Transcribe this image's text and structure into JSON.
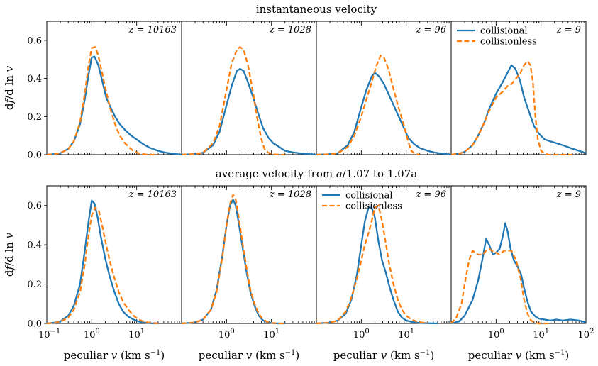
{
  "figure": {
    "row_titles": [
      "instantaneous velocity",
      "average velocity from a/1.07 to 1.07a"
    ],
    "ylabel": "d f / d ln v",
    "xlabel": "peculiar v (km s^-1)",
    "legend_labels": [
      "collisional",
      "collisionless"
    ]
  },
  "chart_data": [
    {
      "type": "line",
      "row": 0,
      "col": 0,
      "title": "z = 10163",
      "xscale": "log",
      "xlim": [
        0.1,
        100
      ],
      "ylim": [
        0,
        0.7
      ],
      "yticks": [
        0.0,
        0.2,
        0.4,
        0.6
      ],
      "ytick_labels": [
        "0.0",
        "0.2",
        "0.4",
        "0.6"
      ],
      "xtick_labels": [],
      "legend": false,
      "series": [
        {
          "name": "collisional",
          "color": "#1f77b4",
          "style": "solid",
          "x": [
            0.1,
            0.15,
            0.2,
            0.3,
            0.4,
            0.55,
            0.7,
            0.85,
            1.0,
            1.15,
            1.4,
            1.7,
            2.1,
            2.6,
            3.3,
            4.2,
            5.5,
            7.5,
            10,
            14,
            20,
            30,
            45,
            70,
            100
          ],
          "y": [
            0.0,
            0.003,
            0.008,
            0.03,
            0.07,
            0.16,
            0.29,
            0.42,
            0.51,
            0.515,
            0.47,
            0.39,
            0.3,
            0.25,
            0.2,
            0.16,
            0.13,
            0.1,
            0.08,
            0.055,
            0.035,
            0.02,
            0.01,
            0.004,
            0.0
          ]
        },
        {
          "name": "collisionless",
          "color": "#ff7f0e",
          "style": "dashed",
          "x": [
            0.1,
            0.15,
            0.2,
            0.3,
            0.4,
            0.55,
            0.7,
            0.85,
            1.0,
            1.2,
            1.4,
            1.7,
            2.1,
            2.6,
            3.3,
            4.2,
            5.5,
            7,
            9,
            12,
            16,
            22,
            30
          ],
          "y": [
            0.0,
            0.003,
            0.008,
            0.03,
            0.07,
            0.17,
            0.32,
            0.47,
            0.56,
            0.565,
            0.52,
            0.43,
            0.33,
            0.24,
            0.16,
            0.1,
            0.06,
            0.035,
            0.015,
            0.005,
            0.001,
            0.0,
            0.0
          ]
        }
      ]
    },
    {
      "type": "line",
      "row": 0,
      "col": 1,
      "title": "z = 1028",
      "xscale": "log",
      "xlim": [
        0.1,
        100
      ],
      "ylim": [
        0,
        0.7
      ],
      "yticks": [],
      "ytick_labels": [],
      "xtick_labels": [],
      "legend": false,
      "series": [
        {
          "name": "collisional",
          "color": "#1f77b4",
          "style": "solid",
          "x": [
            0.1,
            0.2,
            0.3,
            0.5,
            0.7,
            1.0,
            1.3,
            1.7,
            2.0,
            2.4,
            3.0,
            3.8,
            5.0,
            6.5,
            8.5,
            11,
            15,
            20,
            30,
            50,
            100
          ],
          "y": [
            0.0,
            0.003,
            0.01,
            0.05,
            0.12,
            0.26,
            0.36,
            0.44,
            0.45,
            0.44,
            0.38,
            0.31,
            0.22,
            0.14,
            0.09,
            0.06,
            0.04,
            0.02,
            0.012,
            0.005,
            0.0
          ]
        },
        {
          "name": "collisionless",
          "color": "#ff7f0e",
          "style": "dashed",
          "x": [
            0.1,
            0.2,
            0.3,
            0.5,
            0.7,
            1.0,
            1.3,
            1.7,
            2.0,
            2.4,
            3.0,
            3.8,
            5.0,
            6.0,
            7.0,
            8.5,
            11,
            15,
            20
          ],
          "y": [
            0.0,
            0.003,
            0.01,
            0.06,
            0.15,
            0.34,
            0.48,
            0.55,
            0.565,
            0.55,
            0.47,
            0.34,
            0.17,
            0.08,
            0.03,
            0.01,
            0.002,
            0.0,
            0.0
          ]
        }
      ]
    },
    {
      "type": "line",
      "row": 0,
      "col": 2,
      "title": "z = 96",
      "xscale": "log",
      "xlim": [
        0.1,
        100
      ],
      "ylim": [
        0,
        0.7
      ],
      "yticks": [],
      "ytick_labels": [],
      "xtick_labels": [],
      "legend": false,
      "series": [
        {
          "name": "collisional",
          "color": "#1f77b4",
          "style": "solid",
          "x": [
            0.1,
            0.2,
            0.3,
            0.5,
            0.7,
            1.0,
            1.3,
            1.7,
            2.0,
            2.5,
            3.2,
            4.0,
            5.0,
            6.5,
            8.5,
            11,
            15,
            20,
            30,
            45,
            70,
            100
          ],
          "y": [
            0.0,
            0.002,
            0.008,
            0.05,
            0.12,
            0.25,
            0.34,
            0.41,
            0.43,
            0.41,
            0.37,
            0.32,
            0.27,
            0.21,
            0.15,
            0.09,
            0.055,
            0.035,
            0.02,
            0.01,
            0.004,
            0.0
          ]
        },
        {
          "name": "collisionless",
          "color": "#ff7f0e",
          "style": "dashed",
          "x": [
            0.1,
            0.2,
            0.3,
            0.5,
            0.7,
            1.0,
            1.3,
            1.7,
            2.2,
            2.7,
            3.2,
            4.0,
            5.0,
            6.5,
            8.5,
            11,
            13,
            16,
            20
          ],
          "y": [
            0.0,
            0.002,
            0.008,
            0.04,
            0.1,
            0.2,
            0.29,
            0.38,
            0.47,
            0.52,
            0.51,
            0.45,
            0.36,
            0.26,
            0.17,
            0.07,
            0.02,
            0.003,
            0.0
          ]
        }
      ]
    },
    {
      "type": "line",
      "row": 0,
      "col": 3,
      "title": "z = 9",
      "xscale": "log",
      "xlim": [
        0.1,
        100
      ],
      "ylim": [
        0,
        0.7
      ],
      "yticks": [],
      "ytick_labels": [],
      "xtick_labels": [],
      "legend": true,
      "series": [
        {
          "name": "collisional",
          "color": "#1f77b4",
          "style": "solid",
          "x": [
            0.1,
            0.15,
            0.2,
            0.3,
            0.4,
            0.55,
            0.7,
            1.0,
            1.4,
            1.8,
            2.2,
            2.7,
            3.4,
            4.2,
            5.5,
            7,
            9,
            12,
            16,
            22,
            30,
            45,
            70,
            100
          ],
          "y": [
            0.0,
            0.005,
            0.015,
            0.05,
            0.1,
            0.17,
            0.24,
            0.32,
            0.38,
            0.43,
            0.47,
            0.45,
            0.39,
            0.3,
            0.22,
            0.15,
            0.11,
            0.08,
            0.07,
            0.06,
            0.05,
            0.035,
            0.02,
            0.008
          ]
        },
        {
          "name": "collisionless",
          "color": "#ff7f0e",
          "style": "dashed",
          "x": [
            0.1,
            0.15,
            0.2,
            0.3,
            0.4,
            0.55,
            0.7,
            1.0,
            1.4,
            1.8,
            2.2,
            2.8,
            3.5,
            4.2,
            5.0,
            5.8,
            6.6,
            7.5,
            8.5,
            10,
            12,
            15,
            20,
            30,
            50
          ],
          "y": [
            0.0,
            0.005,
            0.015,
            0.05,
            0.1,
            0.17,
            0.23,
            0.3,
            0.33,
            0.36,
            0.37,
            0.4,
            0.43,
            0.47,
            0.49,
            0.47,
            0.38,
            0.2,
            0.08,
            0.02,
            0.005,
            0.0,
            0.0,
            0.0,
            0.0
          ]
        }
      ]
    },
    {
      "type": "line",
      "row": 1,
      "col": 0,
      "title": "z = 10163",
      "xscale": "log",
      "xlim": [
        0.1,
        100
      ],
      "ylim": [
        0,
        0.7
      ],
      "yticks": [
        0.0,
        0.2,
        0.4,
        0.6
      ],
      "ytick_labels": [
        "0.0",
        "0.2",
        "0.4",
        "0.6"
      ],
      "xtick_labels": [
        "10^-1",
        "10^0",
        "10^1"
      ],
      "legend": false,
      "series": [
        {
          "name": "collisional",
          "color": "#1f77b4",
          "style": "solid",
          "x": [
            0.1,
            0.15,
            0.2,
            0.3,
            0.4,
            0.55,
            0.7,
            0.85,
            1.0,
            1.15,
            1.35,
            1.6,
            2.0,
            2.5,
            3.2,
            4.0,
            5.0,
            6.5,
            8.5,
            11,
            15,
            20,
            30
          ],
          "y": [
            0.0,
            0.004,
            0.01,
            0.04,
            0.09,
            0.2,
            0.37,
            0.52,
            0.625,
            0.61,
            0.54,
            0.44,
            0.33,
            0.24,
            0.16,
            0.1,
            0.06,
            0.035,
            0.02,
            0.01,
            0.004,
            0.001,
            0.0
          ]
        },
        {
          "name": "collisionless",
          "color": "#ff7f0e",
          "style": "dashed",
          "x": [
            0.1,
            0.15,
            0.2,
            0.3,
            0.4,
            0.55,
            0.7,
            0.85,
            1.0,
            1.2,
            1.45,
            1.7,
            2.0,
            2.5,
            3.2,
            4.0,
            5.0,
            6.5,
            8.5,
            11,
            15,
            20,
            30
          ],
          "y": [
            0.0,
            0.003,
            0.008,
            0.03,
            0.07,
            0.16,
            0.3,
            0.45,
            0.55,
            0.59,
            0.57,
            0.5,
            0.42,
            0.32,
            0.23,
            0.16,
            0.11,
            0.07,
            0.04,
            0.02,
            0.008,
            0.003,
            0.0
          ]
        }
      ]
    },
    {
      "type": "line",
      "row": 1,
      "col": 1,
      "title": "z = 1028",
      "xscale": "log",
      "xlim": [
        0.1,
        100
      ],
      "ylim": [
        0,
        0.7
      ],
      "yticks": [],
      "ytick_labels": [],
      "xtick_labels": [
        "10^0",
        "10^1"
      ],
      "legend": false,
      "series": [
        {
          "name": "collisional",
          "color": "#1f77b4",
          "style": "solid",
          "x": [
            0.1,
            0.2,
            0.3,
            0.45,
            0.6,
            0.8,
            1.0,
            1.2,
            1.4,
            1.6,
            1.9,
            2.3,
            2.8,
            3.4,
            4.2,
            5.2,
            6.5,
            8.5,
            11,
            15,
            20
          ],
          "y": [
            0.0,
            0.005,
            0.02,
            0.07,
            0.17,
            0.34,
            0.5,
            0.6,
            0.63,
            0.6,
            0.5,
            0.38,
            0.26,
            0.16,
            0.09,
            0.04,
            0.015,
            0.005,
            0.001,
            0.0,
            0.0
          ]
        },
        {
          "name": "collisionless",
          "color": "#ff7f0e",
          "style": "dashed",
          "x": [
            0.1,
            0.2,
            0.3,
            0.45,
            0.6,
            0.8,
            1.0,
            1.2,
            1.4,
            1.6,
            1.9,
            2.3,
            2.8,
            3.4,
            4.2,
            5.2,
            6.5,
            8.5,
            11,
            15,
            20
          ],
          "y": [
            0.0,
            0.005,
            0.02,
            0.07,
            0.16,
            0.33,
            0.5,
            0.61,
            0.655,
            0.63,
            0.53,
            0.4,
            0.28,
            0.17,
            0.1,
            0.05,
            0.02,
            0.006,
            0.002,
            0.0,
            0.0
          ]
        }
      ]
    },
    {
      "type": "line",
      "row": 1,
      "col": 2,
      "title": "z = 96",
      "xscale": "log",
      "xlim": [
        0.1,
        100
      ],
      "ylim": [
        0,
        0.7
      ],
      "yticks": [],
      "ytick_labels": [],
      "xtick_labels": [
        "10^0",
        "10^1"
      ],
      "legend": true,
      "series": [
        {
          "name": "collisional",
          "color": "#1f77b4",
          "style": "solid",
          "x": [
            0.1,
            0.2,
            0.3,
            0.45,
            0.6,
            0.8,
            1.0,
            1.2,
            1.45,
            1.7,
            2.0,
            2.4,
            2.9,
            3.5,
            4.2,
            5.2,
            6.5,
            8,
            10,
            13,
            17,
            22,
            30,
            50
          ],
          "y": [
            0.0,
            0.004,
            0.015,
            0.05,
            0.12,
            0.25,
            0.4,
            0.52,
            0.59,
            0.59,
            0.54,
            0.42,
            0.32,
            0.26,
            0.19,
            0.12,
            0.06,
            0.03,
            0.015,
            0.008,
            0.004,
            0.002,
            0.001,
            0.0
          ]
        },
        {
          "name": "collisionless",
          "color": "#ff7f0e",
          "style": "dashed",
          "x": [
            0.1,
            0.2,
            0.3,
            0.45,
            0.6,
            0.8,
            1.0,
            1.2,
            1.45,
            1.7,
            2.0,
            2.4,
            2.9,
            3.5,
            4.2,
            5.2,
            6.5,
            8,
            10,
            13,
            17,
            22,
            30
          ],
          "y": [
            0.0,
            0.004,
            0.015,
            0.06,
            0.13,
            0.23,
            0.32,
            0.4,
            0.46,
            0.52,
            0.59,
            0.6,
            0.52,
            0.41,
            0.3,
            0.2,
            0.12,
            0.07,
            0.04,
            0.02,
            0.01,
            0.005,
            0.0
          ]
        }
      ]
    },
    {
      "type": "line",
      "row": 1,
      "col": 3,
      "title": "z = 9",
      "xscale": "log",
      "xlim": [
        0.1,
        100
      ],
      "ylim": [
        0,
        0.7
      ],
      "yticks": [],
      "ytick_labels": [],
      "xtick_labels": [
        "10^0",
        "10^1",
        "10^2"
      ],
      "legend": false,
      "series": [
        {
          "name": "collisional",
          "color": "#1f77b4",
          "style": "solid",
          "x": [
            0.1,
            0.15,
            0.2,
            0.3,
            0.4,
            0.5,
            0.6,
            0.7,
            0.85,
            1.0,
            1.2,
            1.4,
            1.6,
            1.8,
            2.1,
            2.5,
            3.0,
            3.6,
            4.2,
            5.0,
            6.0,
            7.5,
            9,
            12,
            16,
            22,
            30,
            45,
            70,
            100
          ],
          "y": [
            0.0,
            0.01,
            0.04,
            0.12,
            0.22,
            0.33,
            0.43,
            0.4,
            0.35,
            0.36,
            0.38,
            0.44,
            0.51,
            0.47,
            0.38,
            0.32,
            0.29,
            0.25,
            0.18,
            0.11,
            0.06,
            0.035,
            0.025,
            0.02,
            0.015,
            0.02,
            0.015,
            0.02,
            0.015,
            0.005
          ]
        },
        {
          "name": "collisionless",
          "color": "#ff7f0e",
          "style": "dashed",
          "x": [
            0.1,
            0.13,
            0.17,
            0.2,
            0.25,
            0.3,
            0.4,
            0.5,
            0.6,
            0.7,
            0.8,
            1.0,
            1.2,
            1.5,
            1.8,
            2.2,
            2.8,
            3.5,
            4.2,
            5.0,
            6.0,
            7.5,
            9,
            12,
            16
          ],
          "y": [
            0.0,
            0.03,
            0.1,
            0.2,
            0.32,
            0.37,
            0.35,
            0.35,
            0.37,
            0.38,
            0.37,
            0.36,
            0.35,
            0.37,
            0.37,
            0.37,
            0.32,
            0.23,
            0.12,
            0.05,
            0.015,
            0.003,
            0.0,
            0.0,
            0.0
          ]
        }
      ]
    }
  ]
}
